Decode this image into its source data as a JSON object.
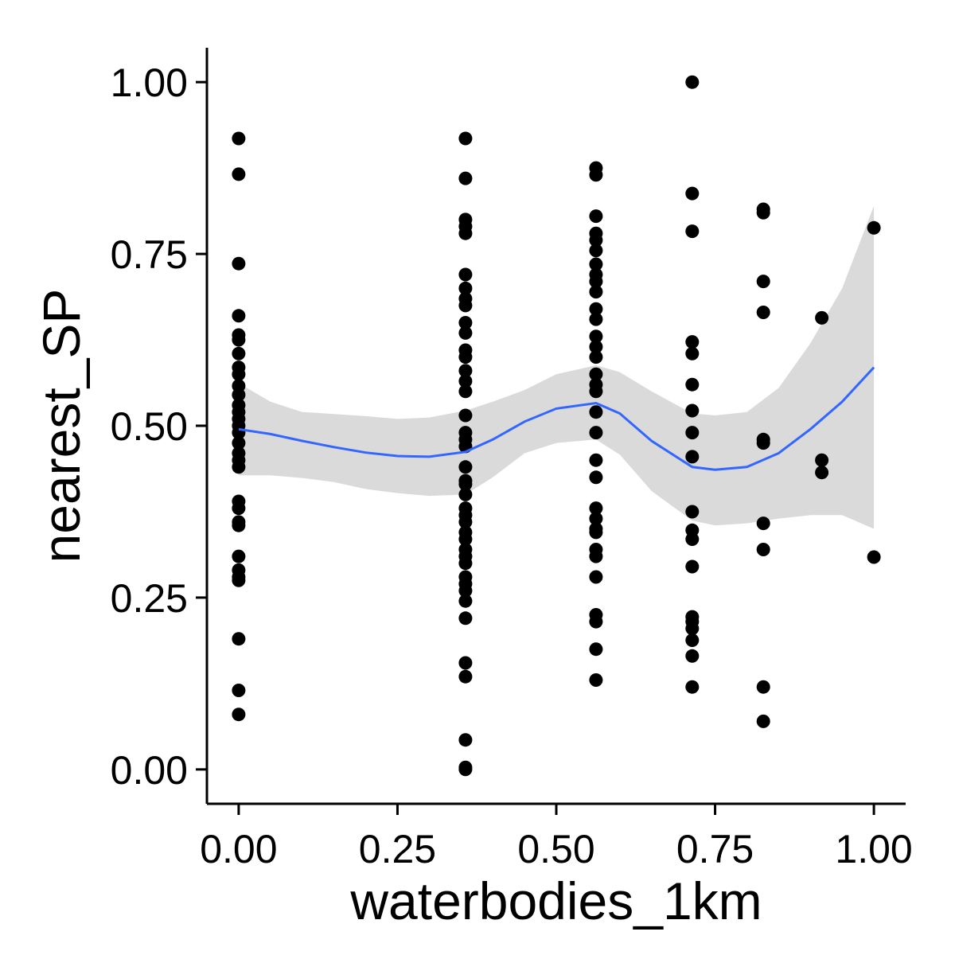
{
  "chart_data": {
    "type": "scatter",
    "title": "",
    "xlabel": "waterbodies_1km",
    "ylabel": "nearest_SP",
    "xlim": [
      -0.05,
      1.05
    ],
    "ylim": [
      -0.05,
      1.05
    ],
    "x_ticks": [
      0,
      0.25,
      0.5,
      0.75,
      1
    ],
    "y_ticks": [
      0,
      0.25,
      0.5,
      0.75,
      1
    ],
    "x_tick_labels": [
      "0.00",
      "0.25",
      "0.50",
      "0.75",
      "1.00"
    ],
    "y_tick_labels": [
      "0.00",
      "0.25",
      "0.50",
      "0.75",
      "1.00"
    ],
    "grid": false,
    "legend": "none",
    "colors": {
      "points": "#000000",
      "smooth_line": "#3366FF",
      "ribbon": "#D3D3D3",
      "axis": "#000000"
    },
    "points": [
      [
        0,
        0.918
      ],
      [
        0,
        0.866
      ],
      [
        0,
        0.736
      ],
      [
        0,
        0.66
      ],
      [
        0,
        0.632
      ],
      [
        0,
        0.625
      ],
      [
        0,
        0.605
      ],
      [
        0,
        0.585
      ],
      [
        0,
        0.575
      ],
      [
        0,
        0.558
      ],
      [
        0,
        0.545
      ],
      [
        0,
        0.53
      ],
      [
        0,
        0.52
      ],
      [
        0,
        0.51
      ],
      [
        0,
        0.5
      ],
      [
        0,
        0.49
      ],
      [
        0,
        0.475
      ],
      [
        0,
        0.46
      ],
      [
        0,
        0.45
      ],
      [
        0,
        0.44
      ],
      [
        0,
        0.39
      ],
      [
        0,
        0.38
      ],
      [
        0,
        0.36
      ],
      [
        0,
        0.355
      ],
      [
        0,
        0.31
      ],
      [
        0,
        0.29
      ],
      [
        0,
        0.28
      ],
      [
        0,
        0.275
      ],
      [
        0,
        0.19
      ],
      [
        0,
        0.115
      ],
      [
        0,
        0.08
      ],
      [
        0.357,
        0.918
      ],
      [
        0.357,
        0.86
      ],
      [
        0.357,
        0.8
      ],
      [
        0.357,
        0.79
      ],
      [
        0.357,
        0.78
      ],
      [
        0.357,
        0.72
      ],
      [
        0.357,
        0.7
      ],
      [
        0.357,
        0.685
      ],
      [
        0.357,
        0.675
      ],
      [
        0.357,
        0.65
      ],
      [
        0.357,
        0.635
      ],
      [
        0.357,
        0.61
      ],
      [
        0.357,
        0.6
      ],
      [
        0.357,
        0.58
      ],
      [
        0.357,
        0.565
      ],
      [
        0.357,
        0.55
      ],
      [
        0.357,
        0.515
      ],
      [
        0.357,
        0.49
      ],
      [
        0.357,
        0.48
      ],
      [
        0.357,
        0.47
      ],
      [
        0.357,
        0.44
      ],
      [
        0.357,
        0.42
      ],
      [
        0.357,
        0.415
      ],
      [
        0.357,
        0.4
      ],
      [
        0.357,
        0.38
      ],
      [
        0.357,
        0.37
      ],
      [
        0.357,
        0.36
      ],
      [
        0.357,
        0.345
      ],
      [
        0.357,
        0.335
      ],
      [
        0.357,
        0.32
      ],
      [
        0.357,
        0.31
      ],
      [
        0.357,
        0.3
      ],
      [
        0.357,
        0.28
      ],
      [
        0.357,
        0.27
      ],
      [
        0.357,
        0.26
      ],
      [
        0.357,
        0.245
      ],
      [
        0.357,
        0.22
      ],
      [
        0.357,
        0.155
      ],
      [
        0.357,
        0.135
      ],
      [
        0.357,
        0.043
      ],
      [
        0.357,
        0.003
      ],
      [
        0.357,
        0.0
      ],
      [
        0.5625,
        0.875
      ],
      [
        0.5625,
        0.865
      ],
      [
        0.5625,
        0.805
      ],
      [
        0.5625,
        0.78
      ],
      [
        0.5625,
        0.77
      ],
      [
        0.5625,
        0.755
      ],
      [
        0.5625,
        0.735
      ],
      [
        0.5625,
        0.72
      ],
      [
        0.5625,
        0.71
      ],
      [
        0.5625,
        0.695
      ],
      [
        0.5625,
        0.67
      ],
      [
        0.5625,
        0.655
      ],
      [
        0.5625,
        0.63
      ],
      [
        0.5625,
        0.615
      ],
      [
        0.5625,
        0.6
      ],
      [
        0.5625,
        0.575
      ],
      [
        0.5625,
        0.56
      ],
      [
        0.5625,
        0.55
      ],
      [
        0.5625,
        0.52
      ],
      [
        0.5625,
        0.49
      ],
      [
        0.5625,
        0.45
      ],
      [
        0.5625,
        0.425
      ],
      [
        0.5625,
        0.38
      ],
      [
        0.5625,
        0.365
      ],
      [
        0.5625,
        0.35
      ],
      [
        0.5625,
        0.345
      ],
      [
        0.5625,
        0.32
      ],
      [
        0.5625,
        0.31
      ],
      [
        0.5625,
        0.28
      ],
      [
        0.5625,
        0.225
      ],
      [
        0.5625,
        0.215
      ],
      [
        0.5625,
        0.175
      ],
      [
        0.5625,
        0.13
      ],
      [
        0.714,
        1.0
      ],
      [
        0.714,
        0.838
      ],
      [
        0.714,
        0.783
      ],
      [
        0.714,
        0.622
      ],
      [
        0.714,
        0.605
      ],
      [
        0.714,
        0.56
      ],
      [
        0.714,
        0.522
      ],
      [
        0.714,
        0.49
      ],
      [
        0.714,
        0.455
      ],
      [
        0.714,
        0.375
      ],
      [
        0.714,
        0.348
      ],
      [
        0.714,
        0.335
      ],
      [
        0.714,
        0.295
      ],
      [
        0.714,
        0.222
      ],
      [
        0.714,
        0.215
      ],
      [
        0.714,
        0.205
      ],
      [
        0.714,
        0.188
      ],
      [
        0.714,
        0.165
      ],
      [
        0.714,
        0.12
      ],
      [
        0.826,
        0.815
      ],
      [
        0.826,
        0.81
      ],
      [
        0.826,
        0.71
      ],
      [
        0.826,
        0.665
      ],
      [
        0.826,
        0.48
      ],
      [
        0.826,
        0.475
      ],
      [
        0.826,
        0.358
      ],
      [
        0.826,
        0.32
      ],
      [
        0.826,
        0.12
      ],
      [
        0.826,
        0.07
      ],
      [
        0.918,
        0.657
      ],
      [
        0.918,
        0.45
      ],
      [
        0.918,
        0.432
      ],
      [
        1.0,
        0.788
      ],
      [
        1.0,
        0.309
      ]
    ],
    "smooth": {
      "x": [
        0,
        0.05,
        0.1,
        0.15,
        0.2,
        0.25,
        0.3,
        0.357,
        0.4,
        0.45,
        0.5,
        0.5625,
        0.6,
        0.65,
        0.714,
        0.75,
        0.8,
        0.85,
        0.9,
        0.95,
        1.0
      ],
      "y": [
        0.495,
        0.488,
        0.478,
        0.469,
        0.461,
        0.456,
        0.455,
        0.462,
        0.48,
        0.506,
        0.525,
        0.533,
        0.518,
        0.478,
        0.44,
        0.436,
        0.44,
        0.46,
        0.495,
        0.535,
        0.585
      ],
      "lower": [
        0.428,
        0.428,
        0.424,
        0.418,
        0.408,
        0.402,
        0.398,
        0.4,
        0.425,
        0.46,
        0.475,
        0.48,
        0.458,
        0.405,
        0.362,
        0.355,
        0.358,
        0.365,
        0.37,
        0.37,
        0.35
      ],
      "upper": [
        0.562,
        0.535,
        0.52,
        0.517,
        0.514,
        0.51,
        0.512,
        0.522,
        0.535,
        0.552,
        0.575,
        0.588,
        0.578,
        0.55,
        0.518,
        0.515,
        0.52,
        0.555,
        0.62,
        0.7,
        0.82
      ]
    }
  }
}
